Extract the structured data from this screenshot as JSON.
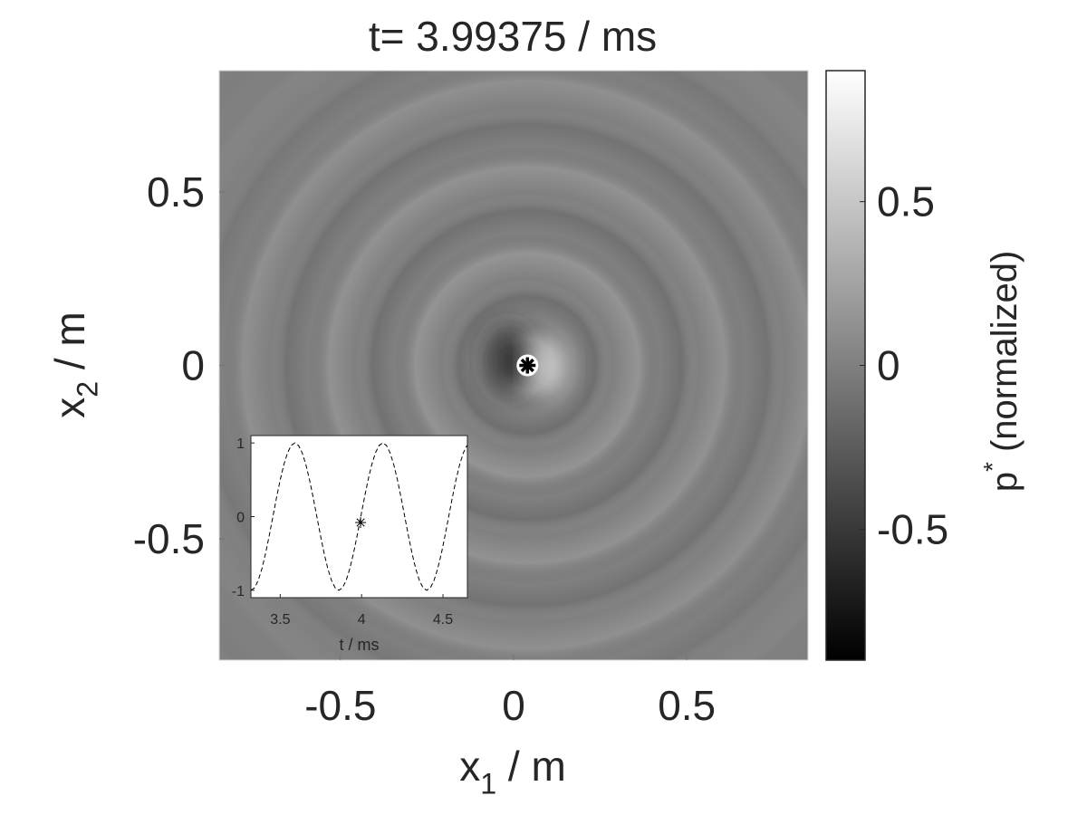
{
  "chart_data": [
    {
      "type": "heatmap",
      "title": "t= 3.99375 / ms",
      "xlabel": {
        "base": "x",
        "sub": "1",
        "rest": " / m"
      },
      "ylabel": {
        "base": "x",
        "sub": "2",
        "rest": " / m"
      },
      "xlim": [
        -0.85,
        0.85
      ],
      "ylim": [
        -0.85,
        0.85
      ],
      "xticks": [
        -0.5,
        0,
        0.5
      ],
      "yticks": [
        -0.5,
        0,
        0.5
      ],
      "source": {
        "x": 0.04,
        "y": 0
      },
      "colorbar": {
        "label": {
          "base": "p",
          "sup": "*",
          "rest": " (normalized)"
        },
        "lim": [
          -0.9,
          0.9
        ],
        "ticks": [
          -0.5,
          0,
          0.5
        ],
        "colors": [
          "#000000",
          "#ffffff"
        ]
      }
    },
    {
      "type": "line",
      "xlabel": "t / ms",
      "x": [
        3.32,
        3.3425,
        3.365,
        3.3875,
        3.41,
        3.4325,
        3.455,
        3.4775,
        3.5,
        3.5225,
        3.545,
        3.5675,
        3.59,
        3.6125,
        3.635,
        3.6575,
        3.68,
        3.7025,
        3.725,
        3.7475,
        3.77,
        3.7925,
        3.815,
        3.8375,
        3.86,
        3.8825,
        3.905,
        3.9275,
        3.95,
        3.9725,
        3.995,
        4.0175,
        4.04,
        4.0625,
        4.085,
        4.1075,
        4.13,
        4.1525,
        4.175,
        4.1975,
        4.22,
        4.2425,
        4.265,
        4.2875,
        4.31,
        4.3325,
        4.355,
        4.3775,
        4.4,
        4.4225,
        4.445,
        4.4675,
        4.49,
        4.5125,
        4.535,
        4.5575,
        4.58,
        4.6025,
        4.625,
        4.6475
      ],
      "values": [
        -1,
        -0.966,
        -0.866,
        -0.707,
        -0.5,
        -0.259,
        0,
        0.259,
        0.5,
        0.707,
        0.866,
        0.966,
        1,
        0.966,
        0.866,
        0.707,
        0.5,
        0.259,
        0,
        -0.259,
        -0.5,
        -0.707,
        -0.866,
        -0.966,
        -1,
        -0.966,
        -0.866,
        -0.707,
        -0.5,
        -0.259,
        0,
        0.259,
        0.5,
        0.707,
        0.866,
        0.966,
        1,
        0.966,
        0.866,
        0.707,
        0.5,
        0.259,
        0,
        -0.259,
        -0.5,
        -0.707,
        -0.866,
        -0.966,
        -1,
        -0.966,
        -0.866,
        -0.707,
        -0.5,
        -0.259,
        0,
        0.259,
        0.5,
        0.707,
        0.866,
        0.966
      ],
      "color": "#000000",
      "dashed": true,
      "xlim": [
        3.32,
        4.65
      ],
      "ylim": [
        -1.1,
        1.1
      ],
      "xticks": [
        3.5,
        4,
        4.5
      ],
      "yticks": [
        -1,
        0,
        1
      ],
      "marker": {
        "x": 3.99375,
        "y": -0.08
      }
    }
  ]
}
